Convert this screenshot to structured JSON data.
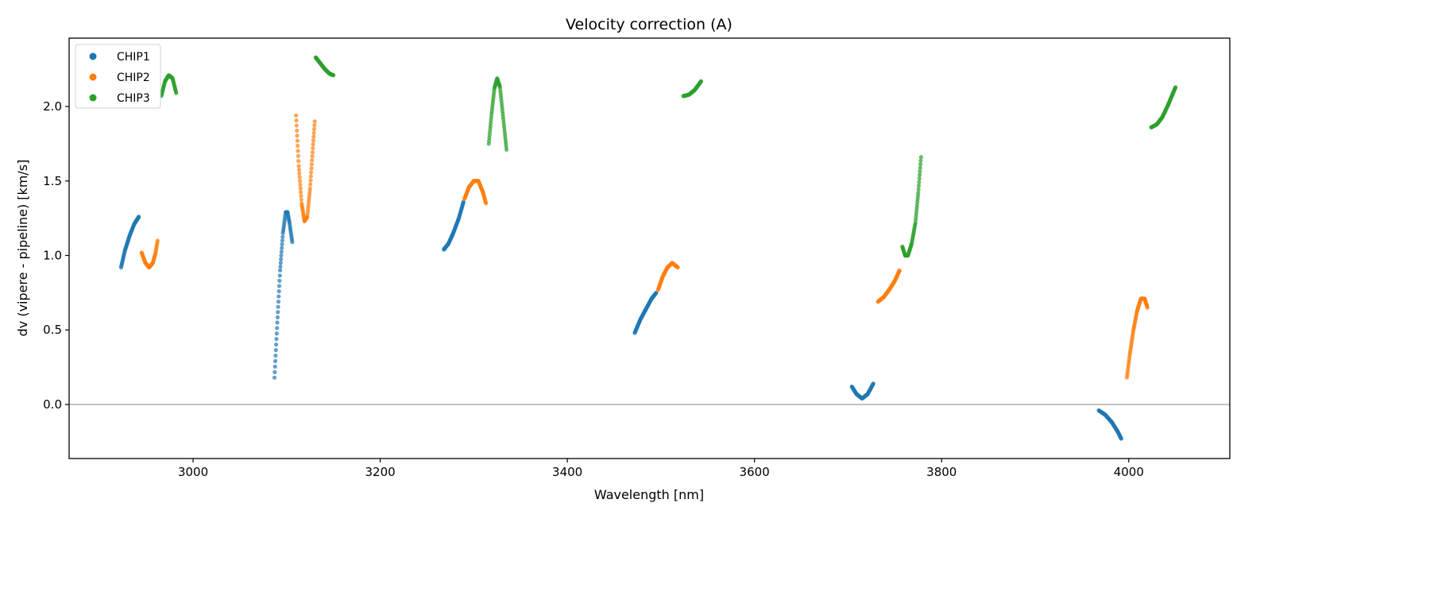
{
  "chart_data": {
    "type": "scatter",
    "title": "Velocity correction (A)",
    "xlabel": "Wavelength [nm]",
    "ylabel": "dv (vipere - pipeline) [km/s]",
    "xlim": [
      2867.5,
      4108
    ],
    "ylim": [
      -0.363,
      2.459
    ],
    "xticks": [
      3000,
      3200,
      3400,
      3600,
      3800,
      4000
    ],
    "xtick_labels": [
      "3000",
      "3200",
      "3400",
      "3600",
      "3800",
      "4000"
    ],
    "yticks": [
      0.0,
      0.5,
      1.0,
      1.5,
      2.0
    ],
    "ytick_labels": [
      "0.0",
      "0.5",
      "1.0",
      "1.5",
      "2.0"
    ],
    "reference_line": 0,
    "grid": false,
    "legend": {
      "placement": "top-left",
      "entries": [
        "CHIP1",
        "CHIP2",
        "CHIP3"
      ]
    },
    "series": [
      {
        "name": "CHIP1",
        "color": "#1f77b4",
        "segments": [
          [
            [
              2923,
              0.92
            ],
            [
              2927,
              1.03
            ],
            [
              2932,
              1.13
            ],
            [
              2937,
              1.21
            ],
            [
              2942,
              1.26
            ]
          ],
          [
            [
              3087,
              0.18
            ],
            [
              3090,
              0.55
            ],
            [
              3093,
              0.9
            ],
            [
              3096,
              1.15
            ],
            [
              3099,
              1.29
            ],
            [
              3101,
              1.29
            ],
            [
              3103,
              1.22
            ],
            [
              3106,
              1.09
            ]
          ],
          [
            [
              3268,
              1.04
            ],
            [
              3273,
              1.08
            ],
            [
              3278,
              1.15
            ],
            [
              3284,
              1.25
            ],
            [
              3289,
              1.36
            ]
          ],
          [
            [
              3472,
              0.48
            ],
            [
              3478,
              0.57
            ],
            [
              3484,
              0.64
            ],
            [
              3490,
              0.71
            ],
            [
              3495,
              0.75
            ]
          ],
          [
            [
              3704,
              0.12
            ],
            [
              3709,
              0.07
            ],
            [
              3715,
              0.04
            ],
            [
              3721,
              0.07
            ],
            [
              3727,
              0.14
            ]
          ],
          [
            [
              3968,
              -0.04
            ],
            [
              3975,
              -0.07
            ],
            [
              3982,
              -0.12
            ],
            [
              3988,
              -0.18
            ],
            [
              3992,
              -0.23
            ]
          ]
        ]
      },
      {
        "name": "CHIP2",
        "color": "#ff7f0e",
        "segments": [
          [
            [
              2945,
              1.02
            ],
            [
              2949,
              0.95
            ],
            [
              2953,
              0.92
            ],
            [
              2957,
              0.95
            ],
            [
              2960,
              1.02
            ],
            [
              2962,
              1.1
            ]
          ],
          [
            [
              3110,
              1.94
            ],
            [
              3113,
              1.6
            ],
            [
              3116,
              1.35
            ],
            [
              3119,
              1.23
            ],
            [
              3122,
              1.26
            ],
            [
              3125,
              1.45
            ],
            [
              3128,
              1.72
            ],
            [
              3130,
              1.9
            ]
          ],
          [
            [
              3290,
              1.38
            ],
            [
              3295,
              1.46
            ],
            [
              3300,
              1.5
            ],
            [
              3305,
              1.5
            ],
            [
              3310,
              1.42
            ],
            [
              3313,
              1.35
            ]
          ],
          [
            [
              3497,
              0.77
            ],
            [
              3502,
              0.86
            ],
            [
              3507,
              0.92
            ],
            [
              3512,
              0.95
            ],
            [
              3518,
              0.92
            ]
          ],
          [
            [
              3732,
              0.69
            ],
            [
              3738,
              0.72
            ],
            [
              3744,
              0.77
            ],
            [
              3750,
              0.83
            ],
            [
              3755,
              0.9
            ]
          ],
          [
            [
              3998,
              0.18
            ],
            [
              4001,
              0.33
            ],
            [
              4005,
              0.5
            ],
            [
              4009,
              0.63
            ],
            [
              4013,
              0.71
            ],
            [
              4017,
              0.71
            ],
            [
              4020,
              0.65
            ]
          ]
        ]
      },
      {
        "name": "CHIP3",
        "color": "#2ca02c",
        "segments": [
          [
            [
              2966,
              2.07
            ],
            [
              2970,
              2.17
            ],
            [
              2974,
              2.21
            ],
            [
              2978,
              2.19
            ],
            [
              2982,
              2.09
            ]
          ],
          [
            [
              3131,
              2.33
            ],
            [
              3136,
              2.29
            ],
            [
              3141,
              2.25
            ],
            [
              3146,
              2.22
            ],
            [
              3150,
              2.21
            ]
          ],
          [
            [
              3316,
              1.75
            ],
            [
              3319,
              1.95
            ],
            [
              3322,
              2.12
            ],
            [
              3325,
              2.19
            ],
            [
              3328,
              2.13
            ],
            [
              3331,
              1.95
            ],
            [
              3335,
              1.71
            ]
          ],
          [
            [
              3524,
              2.07
            ],
            [
              3530,
              2.08
            ],
            [
              3536,
              2.11
            ],
            [
              3543,
              2.17
            ]
          ],
          [
            [
              3758,
              1.06
            ],
            [
              3761,
              1.0
            ],
            [
              3764,
              1.0
            ],
            [
              3768,
              1.08
            ],
            [
              3772,
              1.22
            ],
            [
              3775,
              1.42
            ],
            [
              3778,
              1.66
            ]
          ],
          [
            [
              4024,
              1.86
            ],
            [
              4030,
              1.88
            ],
            [
              4036,
              1.93
            ],
            [
              4042,
              2.01
            ],
            [
              4050,
              2.13
            ]
          ]
        ]
      }
    ]
  }
}
